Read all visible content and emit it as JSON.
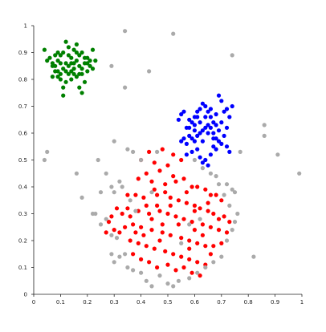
{
  "chart_data": {
    "type": "scatter",
    "title": "",
    "xlabel": "",
    "ylabel": "",
    "xlim": [
      0,
      1
    ],
    "ylim": [
      0,
      1
    ],
    "xticks": [
      "0",
      "0.1",
      "0.2",
      "0.3",
      "0.4",
      "0.5",
      "0.6",
      "0.7",
      "0.8",
      "0.9",
      "1"
    ],
    "yticks": [
      "0",
      "0.1",
      "0.2",
      "0.3",
      "0.4",
      "0.5",
      "0.6",
      "0.7",
      "0.8",
      "0.9",
      "1"
    ],
    "grid": false,
    "legend": false,
    "series": [
      {
        "color": "#008000",
        "points": [
          [
            0.04,
            0.91
          ],
          [
            0.07,
            0.85
          ],
          [
            0.08,
            0.89
          ],
          [
            0.09,
            0.87
          ],
          [
            0.1,
            0.89
          ],
          [
            0.11,
            0.9
          ],
          [
            0.12,
            0.94
          ],
          [
            0.13,
            0.92
          ],
          [
            0.14,
            0.88
          ],
          [
            0.15,
            0.91
          ],
          [
            0.16,
            0.93
          ],
          [
            0.17,
            0.89
          ],
          [
            0.18,
            0.9
          ],
          [
            0.19,
            0.86
          ],
          [
            0.2,
            0.88
          ],
          [
            0.21,
            0.85
          ],
          [
            0.22,
            0.91
          ],
          [
            0.23,
            0.87
          ],
          [
            0.05,
            0.87
          ],
          [
            0.06,
            0.88
          ],
          [
            0.08,
            0.83
          ],
          [
            0.09,
            0.81
          ],
          [
            0.1,
            0.8
          ],
          [
            0.11,
            0.77
          ],
          [
            0.12,
            0.79
          ],
          [
            0.13,
            0.82
          ],
          [
            0.14,
            0.8
          ],
          [
            0.15,
            0.84
          ],
          [
            0.16,
            0.81
          ],
          [
            0.17,
            0.77
          ],
          [
            0.18,
            0.82
          ],
          [
            0.19,
            0.79
          ],
          [
            0.2,
            0.83
          ],
          [
            0.07,
            0.81
          ],
          [
            0.08,
            0.85
          ],
          [
            0.09,
            0.83
          ],
          [
            0.1,
            0.86
          ],
          [
            0.11,
            0.84
          ],
          [
            0.12,
            0.86
          ],
          [
            0.13,
            0.85
          ],
          [
            0.14,
            0.83
          ],
          [
            0.15,
            0.86
          ],
          [
            0.16,
            0.87
          ],
          [
            0.17,
            0.85
          ],
          [
            0.18,
            0.84
          ],
          [
            0.19,
            0.88
          ],
          [
            0.2,
            0.86
          ],
          [
            0.11,
            0.74
          ],
          [
            0.18,
            0.75
          ],
          [
            0.1,
            0.82
          ],
          [
            0.13,
            0.89
          ],
          [
            0.16,
            0.9
          ],
          [
            0.07,
            0.86
          ],
          [
            0.21,
            0.87
          ],
          [
            0.12,
            0.83
          ],
          [
            0.15,
            0.82
          ],
          [
            0.14,
            0.86
          ],
          [
            0.17,
            0.82
          ],
          [
            0.09,
            0.9
          ],
          [
            0.22,
            0.84
          ]
        ]
      },
      {
        "color": "#0000ff",
        "points": [
          [
            0.54,
            0.65
          ],
          [
            0.55,
            0.67
          ],
          [
            0.56,
            0.68
          ],
          [
            0.57,
            0.62
          ],
          [
            0.58,
            0.65
          ],
          [
            0.59,
            0.64
          ],
          [
            0.6,
            0.61
          ],
          [
            0.61,
            0.66
          ],
          [
            0.62,
            0.69
          ],
          [
            0.63,
            0.71
          ],
          [
            0.64,
            0.7
          ],
          [
            0.65,
            0.68
          ],
          [
            0.66,
            0.66
          ],
          [
            0.67,
            0.64
          ],
          [
            0.68,
            0.63
          ],
          [
            0.69,
            0.74
          ],
          [
            0.7,
            0.72
          ],
          [
            0.71,
            0.68
          ],
          [
            0.72,
            0.69
          ],
          [
            0.73,
            0.66
          ],
          [
            0.74,
            0.7
          ],
          [
            0.55,
            0.57
          ],
          [
            0.56,
            0.58
          ],
          [
            0.57,
            0.56
          ],
          [
            0.58,
            0.59
          ],
          [
            0.59,
            0.58
          ],
          [
            0.6,
            0.57
          ],
          [
            0.61,
            0.59
          ],
          [
            0.62,
            0.6
          ],
          [
            0.63,
            0.61
          ],
          [
            0.64,
            0.62
          ],
          [
            0.65,
            0.63
          ],
          [
            0.66,
            0.62
          ],
          [
            0.67,
            0.6
          ],
          [
            0.68,
            0.58
          ],
          [
            0.69,
            0.57
          ],
          [
            0.7,
            0.56
          ],
          [
            0.71,
            0.59
          ],
          [
            0.72,
            0.55
          ],
          [
            0.73,
            0.53
          ],
          [
            0.57,
            0.52
          ],
          [
            0.59,
            0.53
          ],
          [
            0.61,
            0.54
          ],
          [
            0.62,
            0.51
          ],
          [
            0.63,
            0.49
          ],
          [
            0.64,
            0.5
          ],
          [
            0.65,
            0.48
          ],
          [
            0.66,
            0.52
          ],
          [
            0.67,
            0.55
          ],
          [
            0.68,
            0.54
          ],
          [
            0.58,
            0.62
          ],
          [
            0.6,
            0.63
          ],
          [
            0.62,
            0.64
          ],
          [
            0.64,
            0.66
          ],
          [
            0.66,
            0.69
          ],
          [
            0.68,
            0.67
          ],
          [
            0.7,
            0.64
          ],
          [
            0.72,
            0.62
          ],
          [
            0.61,
            0.68
          ],
          [
            0.65,
            0.6
          ],
          [
            0.67,
            0.58
          ],
          [
            0.69,
            0.61
          ],
          [
            0.63,
            0.57
          ],
          [
            0.6,
            0.66
          ]
        ]
      },
      {
        "color": "#ff0000",
        "points": [
          [
            0.43,
            0.53
          ],
          [
            0.48,
            0.54
          ],
          [
            0.52,
            0.52
          ],
          [
            0.55,
            0.5
          ],
          [
            0.4,
            0.5
          ],
          [
            0.45,
            0.49
          ],
          [
            0.5,
            0.48
          ],
          [
            0.47,
            0.46
          ],
          [
            0.42,
            0.45
          ],
          [
            0.39,
            0.43
          ],
          [
            0.44,
            0.42
          ],
          [
            0.49,
            0.41
          ],
          [
            0.53,
            0.42
          ],
          [
            0.56,
            0.43
          ],
          [
            0.59,
            0.4
          ],
          [
            0.61,
            0.4
          ],
          [
            0.64,
            0.39
          ],
          [
            0.66,
            0.37
          ],
          [
            0.68,
            0.37
          ],
          [
            0.7,
            0.35
          ],
          [
            0.38,
            0.37
          ],
          [
            0.41,
            0.36
          ],
          [
            0.46,
            0.37
          ],
          [
            0.51,
            0.36
          ],
          [
            0.54,
            0.35
          ],
          [
            0.57,
            0.34
          ],
          [
            0.6,
            0.33
          ],
          [
            0.62,
            0.32
          ],
          [
            0.65,
            0.31
          ],
          [
            0.67,
            0.3
          ],
          [
            0.71,
            0.29
          ],
          [
            0.73,
            0.27
          ],
          [
            0.35,
            0.32
          ],
          [
            0.33,
            0.3
          ],
          [
            0.36,
            0.29
          ],
          [
            0.39,
            0.31
          ],
          [
            0.43,
            0.3
          ],
          [
            0.47,
            0.31
          ],
          [
            0.5,
            0.3
          ],
          [
            0.53,
            0.29
          ],
          [
            0.56,
            0.28
          ],
          [
            0.59,
            0.27
          ],
          [
            0.63,
            0.26
          ],
          [
            0.66,
            0.25
          ],
          [
            0.69,
            0.24
          ],
          [
            0.72,
            0.23
          ],
          [
            0.28,
            0.27
          ],
          [
            0.3,
            0.24
          ],
          [
            0.32,
            0.23
          ],
          [
            0.34,
            0.25
          ],
          [
            0.37,
            0.26
          ],
          [
            0.4,
            0.25
          ],
          [
            0.44,
            0.24
          ],
          [
            0.48,
            0.23
          ],
          [
            0.51,
            0.22
          ],
          [
            0.55,
            0.21
          ],
          [
            0.58,
            0.2
          ],
          [
            0.61,
            0.19
          ],
          [
            0.64,
            0.18
          ],
          [
            0.67,
            0.18
          ],
          [
            0.7,
            0.19
          ],
          [
            0.27,
            0.23
          ],
          [
            0.29,
            0.29
          ],
          [
            0.31,
            0.32
          ],
          [
            0.36,
            0.2
          ],
          [
            0.39,
            0.19
          ],
          [
            0.42,
            0.18
          ],
          [
            0.45,
            0.17
          ],
          [
            0.49,
            0.16
          ],
          [
            0.52,
            0.15
          ],
          [
            0.55,
            0.14
          ],
          [
            0.58,
            0.13
          ],
          [
            0.61,
            0.12
          ],
          [
            0.64,
            0.11
          ],
          [
            0.4,
            0.13
          ],
          [
            0.43,
            0.12
          ],
          [
            0.46,
            0.1
          ],
          [
            0.5,
            0.11
          ],
          [
            0.53,
            0.09
          ],
          [
            0.56,
            0.1
          ],
          [
            0.59,
            0.08
          ],
          [
            0.62,
            0.07
          ],
          [
            0.41,
            0.22
          ],
          [
            0.44,
            0.28
          ],
          [
            0.46,
            0.33
          ],
          [
            0.49,
            0.38
          ],
          [
            0.52,
            0.44
          ],
          [
            0.57,
            0.38
          ],
          [
            0.6,
            0.31
          ],
          [
            0.63,
            0.22
          ],
          [
            0.66,
            0.15
          ],
          [
            0.37,
            0.15
          ],
          [
            0.47,
            0.2
          ],
          [
            0.54,
            0.26
          ],
          [
            0.58,
            0.17
          ],
          [
            0.65,
            0.34
          ],
          [
            0.69,
            0.28
          ],
          [
            0.35,
            0.37
          ],
          [
            0.45,
            0.39
          ],
          [
            0.51,
            0.33
          ],
          [
            0.48,
            0.26
          ],
          [
            0.42,
            0.33
          ],
          [
            0.6,
            0.24
          ],
          [
            0.38,
            0.23
          ]
        ]
      },
      {
        "color": "#aaaaaa",
        "points": [
          [
            0.34,
            0.98
          ],
          [
            0.52,
            0.97
          ],
          [
            0.74,
            0.89
          ],
          [
            0.29,
            0.85
          ],
          [
            0.43,
            0.83
          ],
          [
            0.34,
            0.77
          ],
          [
            0.86,
            0.63
          ],
          [
            0.86,
            0.59
          ],
          [
            0.77,
            0.53
          ],
          [
            0.91,
            0.52
          ],
          [
            0.99,
            0.45
          ],
          [
            0.05,
            0.53
          ],
          [
            0.04,
            0.5
          ],
          [
            0.3,
            0.57
          ],
          [
            0.35,
            0.54
          ],
          [
            0.37,
            0.53
          ],
          [
            0.4,
            0.5
          ],
          [
            0.46,
            0.53
          ],
          [
            0.6,
            0.5
          ],
          [
            0.63,
            0.47
          ],
          [
            0.66,
            0.45
          ],
          [
            0.68,
            0.44
          ],
          [
            0.72,
            0.41
          ],
          [
            0.74,
            0.39
          ],
          [
            0.75,
            0.38
          ],
          [
            0.16,
            0.45
          ],
          [
            0.18,
            0.36
          ],
          [
            0.24,
            0.5
          ],
          [
            0.25,
            0.38
          ],
          [
            0.27,
            0.45
          ],
          [
            0.29,
            0.4
          ],
          [
            0.3,
            0.38
          ],
          [
            0.32,
            0.42
          ],
          [
            0.33,
            0.4
          ],
          [
            0.22,
            0.3
          ],
          [
            0.23,
            0.3
          ],
          [
            0.25,
            0.26
          ],
          [
            0.27,
            0.28
          ],
          [
            0.29,
            0.22
          ],
          [
            0.31,
            0.21
          ],
          [
            0.32,
            0.14
          ],
          [
            0.29,
            0.15
          ],
          [
            0.3,
            0.12
          ],
          [
            0.34,
            0.15
          ],
          [
            0.37,
            0.09
          ],
          [
            0.4,
            0.08
          ],
          [
            0.42,
            0.05
          ],
          [
            0.44,
            0.03
          ],
          [
            0.47,
            0.07
          ],
          [
            0.5,
            0.04
          ],
          [
            0.52,
            0.03
          ],
          [
            0.54,
            0.05
          ],
          [
            0.58,
            0.06
          ],
          [
            0.61,
            0.08
          ],
          [
            0.64,
            0.1
          ],
          [
            0.67,
            0.12
          ],
          [
            0.7,
            0.14
          ],
          [
            0.72,
            0.2
          ],
          [
            0.74,
            0.24
          ],
          [
            0.75,
            0.27
          ],
          [
            0.76,
            0.3
          ],
          [
            0.82,
            0.14
          ],
          [
            0.58,
            0.26
          ],
          [
            0.62,
            0.28
          ],
          [
            0.55,
            0.19
          ],
          [
            0.35,
            0.1
          ],
          [
            0.38,
            0.31
          ],
          [
            0.36,
            0.35
          ],
          [
            0.44,
            0.38
          ],
          [
            0.69,
            0.41
          ],
          [
            0.71,
            0.37
          ],
          [
            0.73,
            0.33
          ]
        ]
      }
    ]
  }
}
